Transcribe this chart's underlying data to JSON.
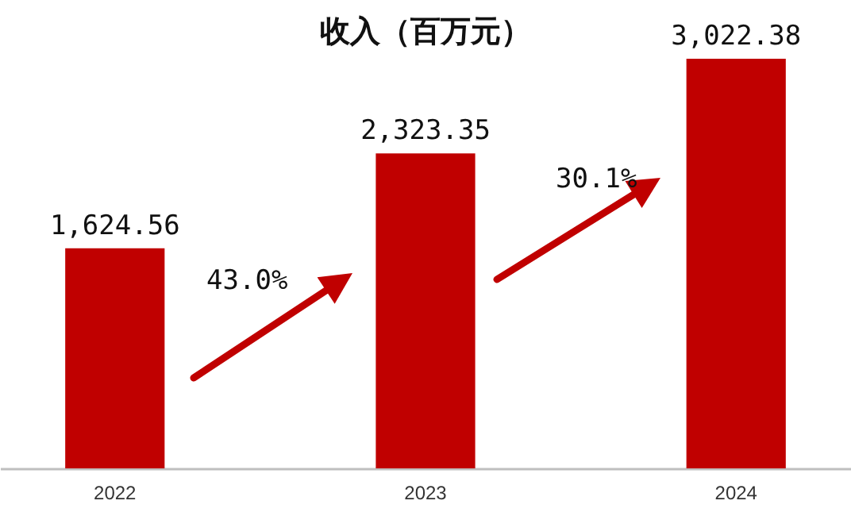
{
  "chart_data": {
    "type": "bar",
    "title": "收入（百万元）",
    "categories": [
      "2022",
      "2023",
      "2024"
    ],
    "values": [
      1624.56,
      2323.35,
      3022.38
    ],
    "value_labels": [
      "1,624.56",
      "2,323.35",
      "3,022.38"
    ],
    "color": "#c00000",
    "grid": false,
    "annotations": [
      "43.0%",
      "30.1%"
    ]
  }
}
